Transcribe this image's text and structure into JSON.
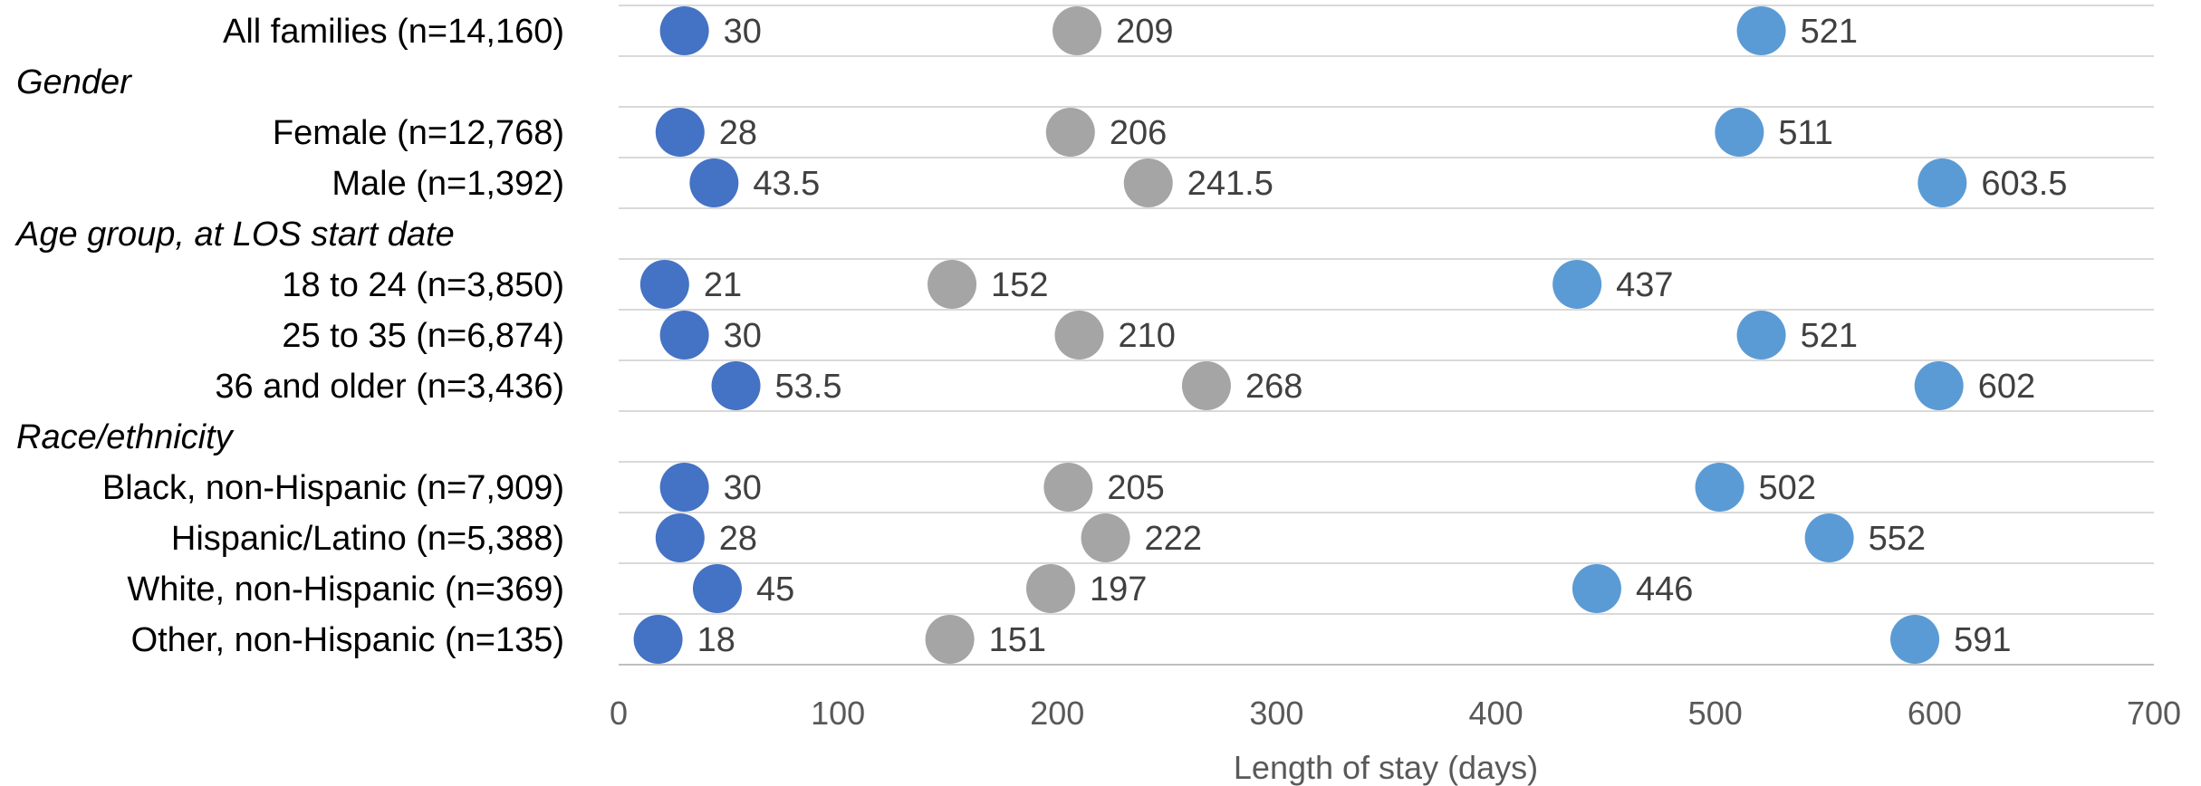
{
  "chart_data": {
    "type": "scatter",
    "xlabel": "Length of stay (days)",
    "xlim": [
      0,
      700
    ],
    "xticks": [
      0,
      100,
      200,
      300,
      400,
      500,
      600,
      700
    ],
    "grid": true,
    "rows": [
      {
        "kind": "item",
        "label": "All families (n=14,160)",
        "values": [
          30,
          209,
          521
        ],
        "value_labels": [
          "30",
          "209",
          "521"
        ]
      },
      {
        "kind": "section",
        "label": "Gender"
      },
      {
        "kind": "item",
        "label": "Female (n=12,768)",
        "values": [
          28,
          206,
          511
        ],
        "value_labels": [
          "28",
          "206",
          "511"
        ]
      },
      {
        "kind": "item",
        "label": "Male (n=1,392)",
        "values": [
          43.5,
          241.5,
          603.5
        ],
        "value_labels": [
          "43.5",
          "241.5",
          "603.5"
        ]
      },
      {
        "kind": "section",
        "label": "Age group, at LOS start date"
      },
      {
        "kind": "item",
        "label": "18 to 24 (n=3,850)",
        "values": [
          21,
          152,
          437
        ],
        "value_labels": [
          "21",
          "152",
          "437"
        ]
      },
      {
        "kind": "item",
        "label": "25 to 35 (n=6,874)",
        "values": [
          30,
          210,
          521
        ],
        "value_labels": [
          "30",
          "210",
          "521"
        ]
      },
      {
        "kind": "item",
        "label": "36 and older (n=3,436)",
        "values": [
          53.5,
          268,
          602
        ],
        "value_labels": [
          "53.5",
          "268",
          "602"
        ]
      },
      {
        "kind": "section",
        "label": "Race/ethnicity"
      },
      {
        "kind": "item",
        "label": "Black, non-Hispanic (n=7,909)",
        "values": [
          30,
          205,
          502
        ],
        "value_labels": [
          "30",
          "205",
          "502"
        ]
      },
      {
        "kind": "item",
        "label": "Hispanic/Latino (n=5,388)",
        "values": [
          28,
          222,
          552
        ],
        "value_labels": [
          "28",
          "222",
          "552"
        ]
      },
      {
        "kind": "item",
        "label": "White, non-Hispanic (n=369)",
        "values": [
          45,
          197,
          446
        ],
        "value_labels": [
          "45",
          "197",
          "446"
        ]
      },
      {
        "kind": "item",
        "label": "Other, non-Hispanic (n=135)",
        "values": [
          18,
          151,
          591
        ],
        "value_labels": [
          "18",
          "151",
          "591"
        ]
      }
    ],
    "series_colors": [
      "#4472c4",
      "#a5a5a5",
      "#5b9bd5"
    ]
  }
}
